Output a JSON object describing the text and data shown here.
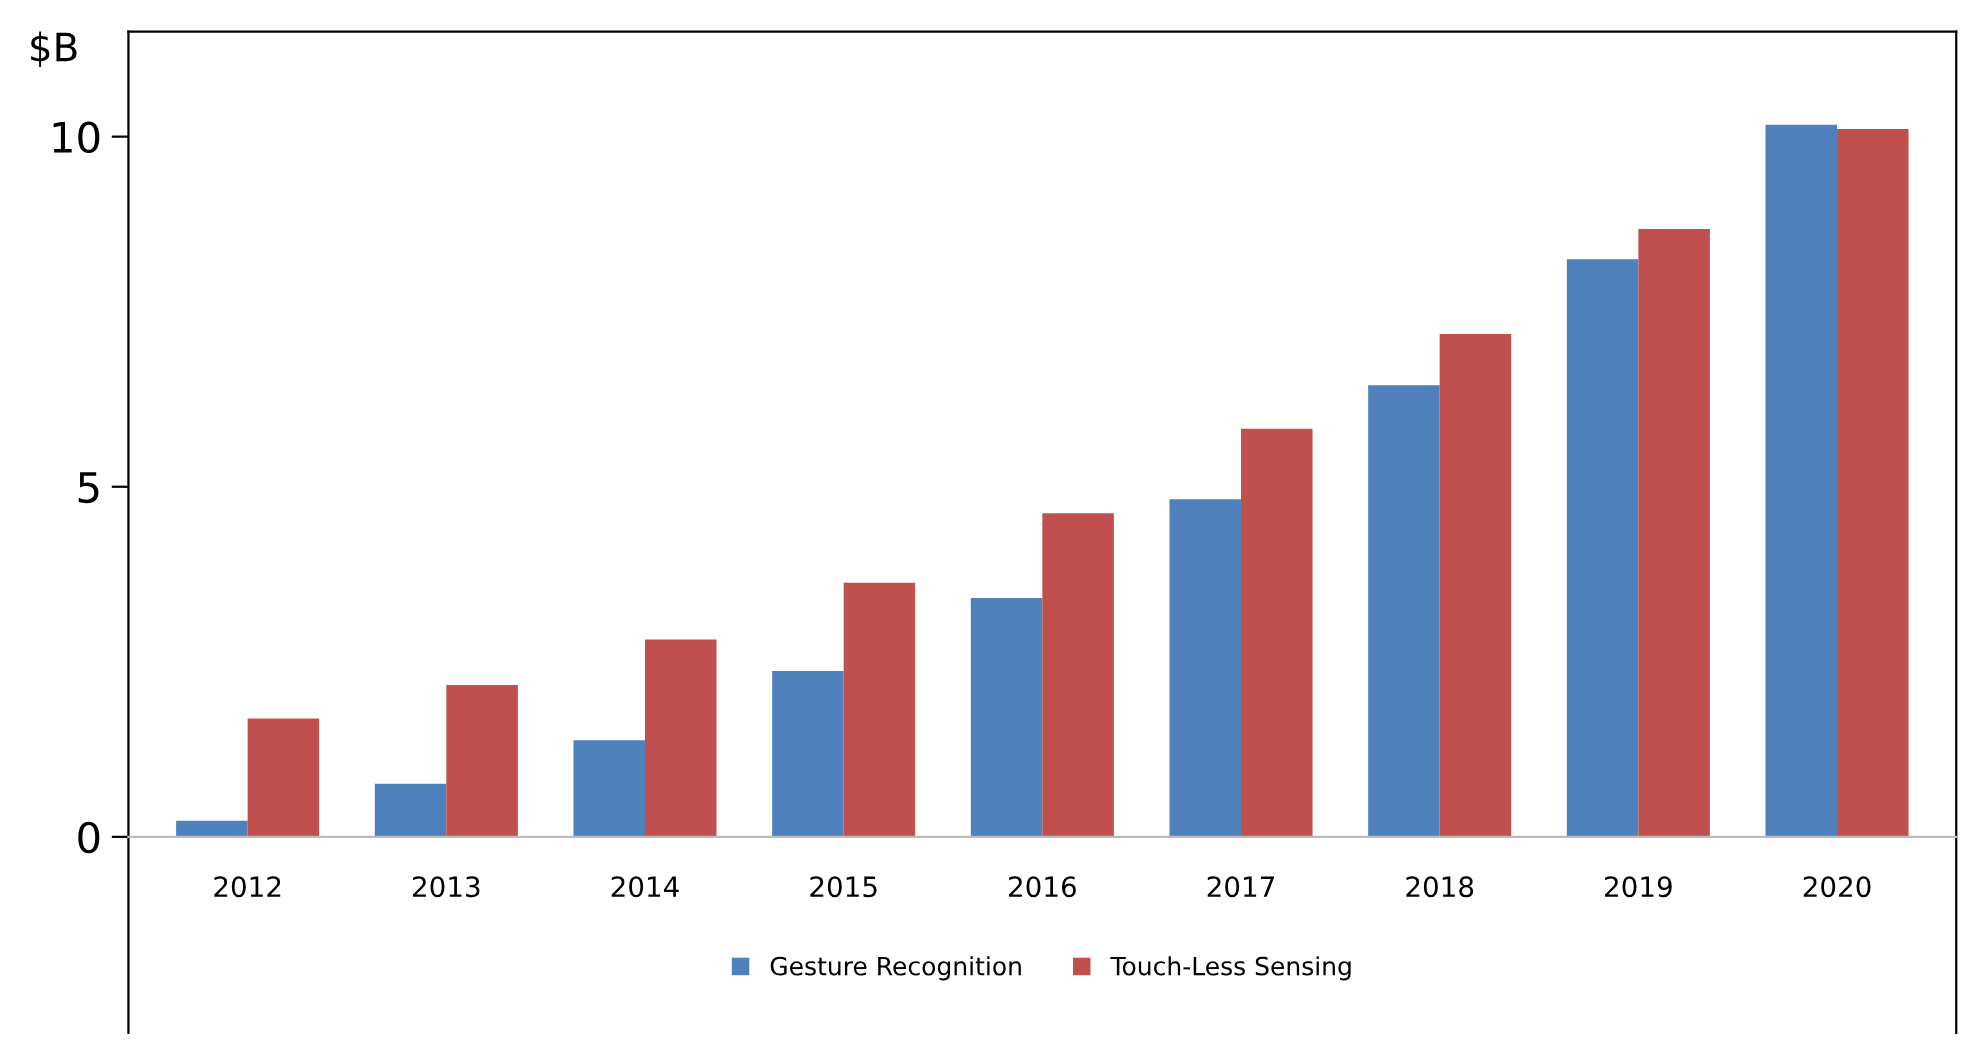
{
  "chart_data": {
    "type": "bar",
    "ylabel": "$B",
    "categories": [
      "2012",
      "2013",
      "2014",
      "2015",
      "2016",
      "2017",
      "2018",
      "2019",
      "2020"
    ],
    "series": [
      {
        "name": "Gesture Recognition",
        "color": "#4f81bd",
        "values": [
          0.23,
          0.76,
          1.38,
          2.37,
          3.41,
          4.82,
          6.45,
          8.25,
          10.17
        ]
      },
      {
        "name": "Touch-Less Sensing",
        "color": "#c0504d",
        "values": [
          1.69,
          2.17,
          2.82,
          3.63,
          4.62,
          5.83,
          7.18,
          8.68,
          10.11
        ]
      }
    ],
    "ylim": [
      -2.8,
      11.5
    ],
    "yticks": [
      0,
      5,
      10
    ],
    "grid": false,
    "legend": "bottom"
  }
}
